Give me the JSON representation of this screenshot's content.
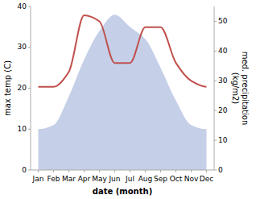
{
  "chart_data": {
    "type": "line",
    "categories": [
      "Jan",
      "Feb",
      "Mar",
      "Apr",
      "May",
      "Jun",
      "Jul",
      "Aug",
      "Sep",
      "Oct",
      "Nov",
      "Dec"
    ],
    "series": [
      {
        "type": "area",
        "color": "#c5cfe8",
        "values": [
          10,
          11,
          18,
          27,
          34,
          38,
          35,
          32,
          25,
          17,
          11,
          10
        ]
      },
      {
        "type": "line",
        "color": "#c0504d",
        "axis": "y2",
        "values": [
          28,
          28,
          33,
          52,
          50,
          36,
          36,
          48,
          48,
          36,
          30,
          28
        ]
      }
    ],
    "xlabel": "date (month)",
    "ylabel": "max temp (C)",
    "y2label": "med. precipitation\n(kg/m2)",
    "ylim": [
      0,
      40
    ],
    "yticks": [
      0,
      10,
      20,
      30,
      40
    ],
    "y2lim": [
      0,
      55
    ],
    "y2ticks": [
      0,
      10,
      20,
      30,
      40,
      50
    ],
    "grid": false
  }
}
